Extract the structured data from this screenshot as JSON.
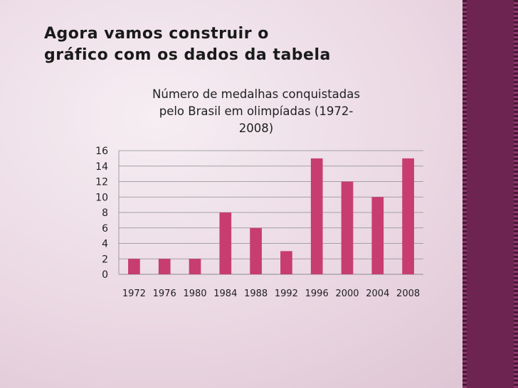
{
  "slide": {
    "title_line1": "Agora vamos construir o",
    "title_line2": "gráfico com os dados da tabela"
  },
  "colors": {
    "bar": "#c73d70",
    "band": "#6d2451",
    "grid": "#8c8c8c"
  },
  "chart_data": {
    "type": "bar",
    "title_line1": "Número de medalhas conquistadas",
    "title_line2": "pelo Brasil em olimpíadas (1972-",
    "title_line3": "2008)",
    "categories": [
      "1972",
      "1976",
      "1980",
      "1984",
      "1988",
      "1992",
      "1996",
      "2000",
      "2004",
      "2008"
    ],
    "values": [
      2,
      2,
      2,
      8,
      6,
      3,
      15,
      12,
      10,
      15
    ],
    "ylim": [
      0,
      16
    ],
    "yticks": [
      0,
      2,
      4,
      6,
      8,
      10,
      12,
      14,
      16
    ],
    "grid": true,
    "legend": "none"
  }
}
